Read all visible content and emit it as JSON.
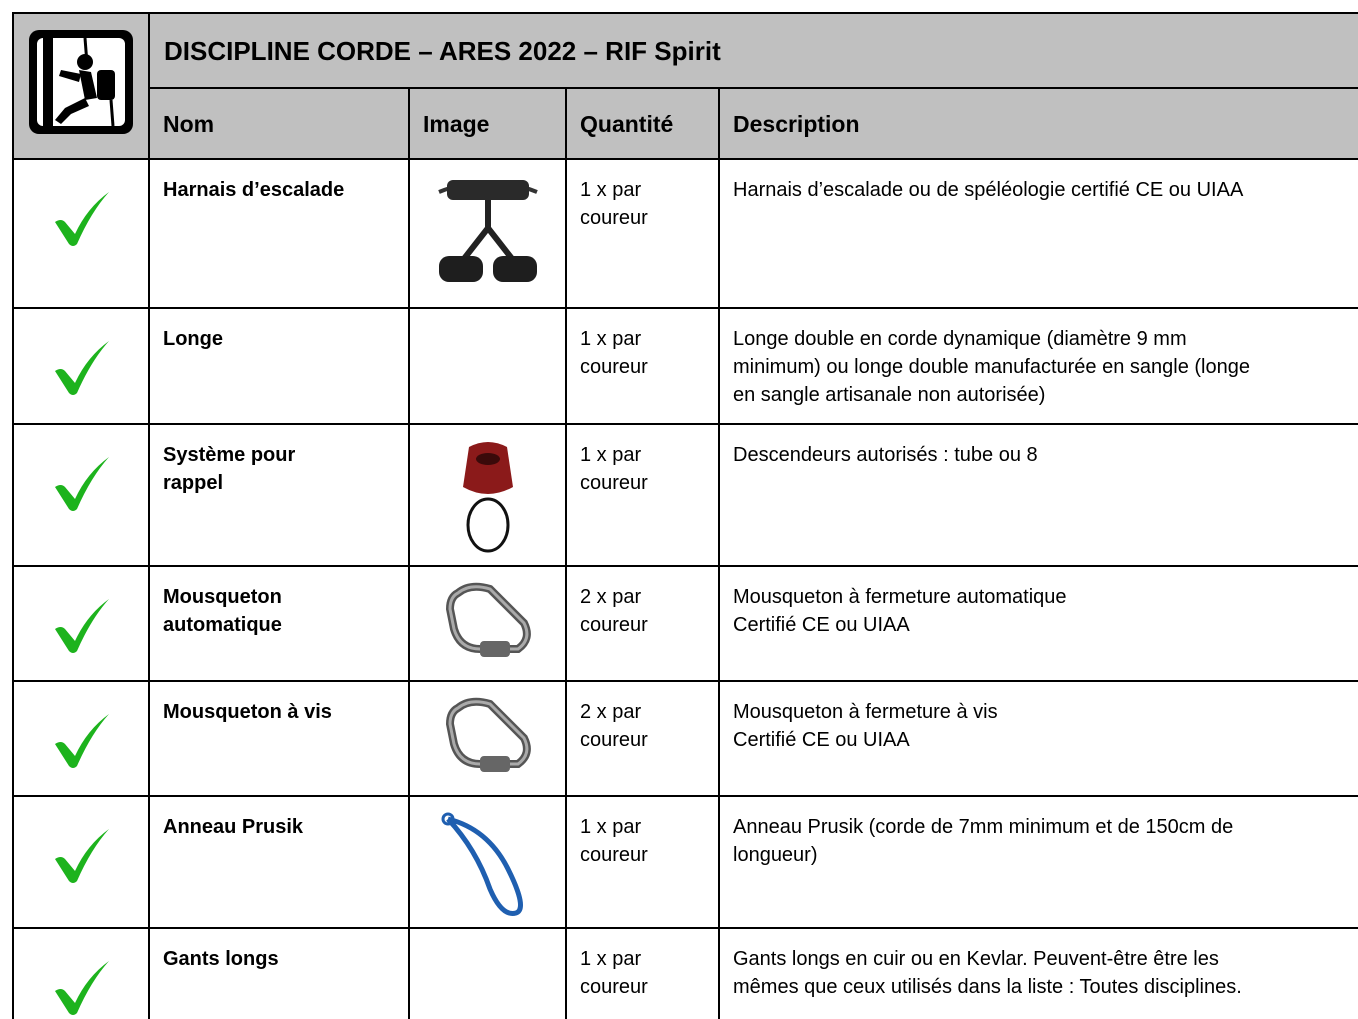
{
  "header": {
    "title": "DISCIPLINE CORDE – ARES 2022 – RIF Spirit",
    "columns": [
      "Nom",
      "Image",
      "Quantité",
      "Description"
    ]
  },
  "rows": [
    {
      "name": [
        "Harnais d’escalade"
      ],
      "quantity": [
        "1 x par",
        "coureur"
      ],
      "description": [
        "Harnais d’escalade ou de spéléologie certifié CE ou UIAA"
      ]
    },
    {
      "name": [
        "Longe"
      ],
      "quantity": [
        "1 x par",
        "coureur"
      ],
      "description": [
        "Longe double en corde dynamique (diamètre 9 mm",
        "minimum) ou longe double manufacturée en sangle (longe",
        "en sangle artisanale non autorisée)"
      ]
    },
    {
      "name": [
        "Système pour",
        "rappel"
      ],
      "quantity": [
        "1 x par",
        "coureur"
      ],
      "description": [
        "Descendeurs autorisés : tube ou 8"
      ]
    },
    {
      "name": [
        "Mousqueton",
        "automatique"
      ],
      "quantity": [
        "2 x par",
        "coureur"
      ],
      "description": [
        "Mousqueton à fermeture automatique",
        "Certifié CE ou UIAA"
      ]
    },
    {
      "name": [
        "Mousqueton à vis"
      ],
      "quantity": [
        "2 x par",
        "coureur"
      ],
      "description": [
        "Mousqueton à fermeture à vis",
        "Certifié CE ou UIAA"
      ]
    },
    {
      "name": [
        "Anneau Prusik"
      ],
      "quantity": [
        "1 x par",
        "coureur"
      ],
      "description": [
        "Anneau Prusik (corde de 7mm minimum et de 150cm de",
        "longueur)"
      ]
    },
    {
      "name": [
        "Gants longs"
      ],
      "quantity": [
        "1 x par",
        "coureur"
      ],
      "description": [
        "Gants longs en cuir ou en Kevlar. Peuvent-être être les",
        "mêmes que ceux utilisés dans la liste : Toutes disciplines."
      ]
    }
  ]
}
